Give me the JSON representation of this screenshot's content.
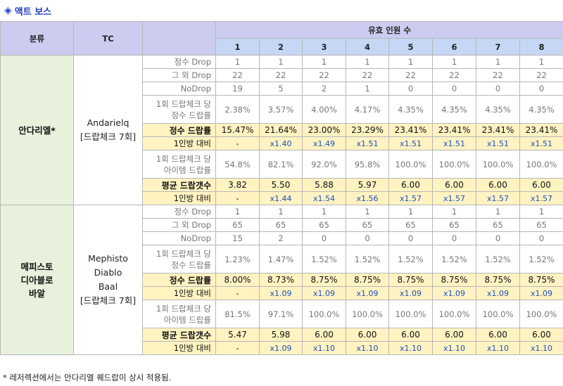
{
  "title": "액트 보스",
  "headers": {
    "category": "분류",
    "tc": "TC",
    "party": "유효 인원 수",
    "counts": [
      "1",
      "2",
      "3",
      "4",
      "5",
      "6",
      "7",
      "8"
    ]
  },
  "bosses": [
    {
      "name": "안다리엘*",
      "tc_lines": [
        "Andarielq",
        "[드랍체크 7회]"
      ],
      "rows": {
        "quest": {
          "label": "정수 Drop",
          "values": [
            "1",
            "1",
            "1",
            "1",
            "1",
            "1",
            "1",
            "1"
          ]
        },
        "other": {
          "label": "그 외 Drop",
          "values": [
            "22",
            "22",
            "22",
            "22",
            "22",
            "22",
            "22",
            "22"
          ]
        },
        "nodrop": {
          "label": "NoDrop",
          "values": [
            "19",
            "5",
            "2",
            "1",
            "0",
            "0",
            "0",
            "0"
          ]
        },
        "per_check": {
          "label1": "1회 드랍체크 당",
          "label2": "정수 드랍률",
          "values": [
            "2.38%",
            "3.57%",
            "4.00%",
            "4.17%",
            "4.35%",
            "4.35%",
            "4.35%",
            "4.35%"
          ]
        },
        "essence_rate": {
          "label": "정수 드랍률",
          "values": [
            "15.47%",
            "21.64%",
            "23.00%",
            "23.29%",
            "23.41%",
            "23.41%",
            "23.41%",
            "23.41%"
          ]
        },
        "ratio1": {
          "label": "1인방 대비",
          "values": [
            "-",
            "x1.40",
            "x1.49",
            "x1.51",
            "x1.51",
            "x1.51",
            "x1.51",
            "x1.51"
          ]
        },
        "item_check": {
          "label1": "1회 드랍체크 당",
          "label2": "아이템 드랍률",
          "values": [
            "54.8%",
            "82.1%",
            "92.0%",
            "95.8%",
            "100.0%",
            "100.0%",
            "100.0%",
            "100.0%"
          ]
        },
        "avg_drop": {
          "label": "평균 드랍갯수",
          "values": [
            "3.82",
            "5.50",
            "5.88",
            "5.97",
            "6.00",
            "6.00",
            "6.00",
            "6.00"
          ]
        },
        "ratio2": {
          "label": "1인방 대비",
          "values": [
            "-",
            "x1.44",
            "x1.54",
            "x1.56",
            "x1.57",
            "x1.57",
            "x1.57",
            "x1.57"
          ]
        }
      }
    },
    {
      "name_lines": [
        "메피스토",
        "디아블로",
        "바알"
      ],
      "tc_lines": [
        "Mephisto",
        "Diablo",
        "Baal",
        "[드랍체크 7회]"
      ],
      "rows": {
        "quest": {
          "label": "정수 Drop",
          "values": [
            "1",
            "1",
            "1",
            "1",
            "1",
            "1",
            "1",
            "1"
          ]
        },
        "other": {
          "label": "그 외 Drop",
          "values": [
            "65",
            "65",
            "65",
            "65",
            "65",
            "65",
            "65",
            "65"
          ]
        },
        "nodrop": {
          "label": "NoDrop",
          "values": [
            "15",
            "2",
            "0",
            "0",
            "0",
            "0",
            "0",
            "0"
          ]
        },
        "per_check": {
          "label1": "1회 드랍체크 당",
          "label2": "정수 드랍률",
          "values": [
            "1.23%",
            "1.47%",
            "1.52%",
            "1.52%",
            "1.52%",
            "1.52%",
            "1.52%",
            "1.52%"
          ]
        },
        "essence_rate": {
          "label": "정수 드랍률",
          "values": [
            "8.00%",
            "8.73%",
            "8.75%",
            "8.75%",
            "8.75%",
            "8.75%",
            "8.75%",
            "8.75%"
          ]
        },
        "ratio1": {
          "label": "1인방 대비",
          "values": [
            "-",
            "x1.09",
            "x1.09",
            "x1.09",
            "x1.09",
            "x1.09",
            "x1.09",
            "x1.09"
          ]
        },
        "item_check": {
          "label1": "1회 드랍체크 당",
          "label2": "아이템 드랍률",
          "values": [
            "81.5%",
            "97.1%",
            "100.0%",
            "100.0%",
            "100.0%",
            "100.0%",
            "100.0%",
            "100.0%"
          ]
        },
        "avg_drop": {
          "label": "평균 드랍갯수",
          "values": [
            "5.47",
            "5.98",
            "6.00",
            "6.00",
            "6.00",
            "6.00",
            "6.00",
            "6.00"
          ]
        },
        "ratio2": {
          "label": "1인방 대비",
          "values": [
            "-",
            "x1.09",
            "x1.10",
            "x1.10",
            "x1.10",
            "x1.10",
            "x1.10",
            "x1.10"
          ]
        }
      }
    }
  ],
  "footnote": "* 레저렉션에서는 안다리엘 퀘드랍이 상시 적용됨.",
  "icon": "diamond-icon",
  "colors": {
    "title": "#1f3fbf",
    "header": "#ccccf0",
    "boss_cell": "#e7f1dc",
    "highlight": "#fff3c2",
    "ratio_text": "#1f4fbf"
  }
}
